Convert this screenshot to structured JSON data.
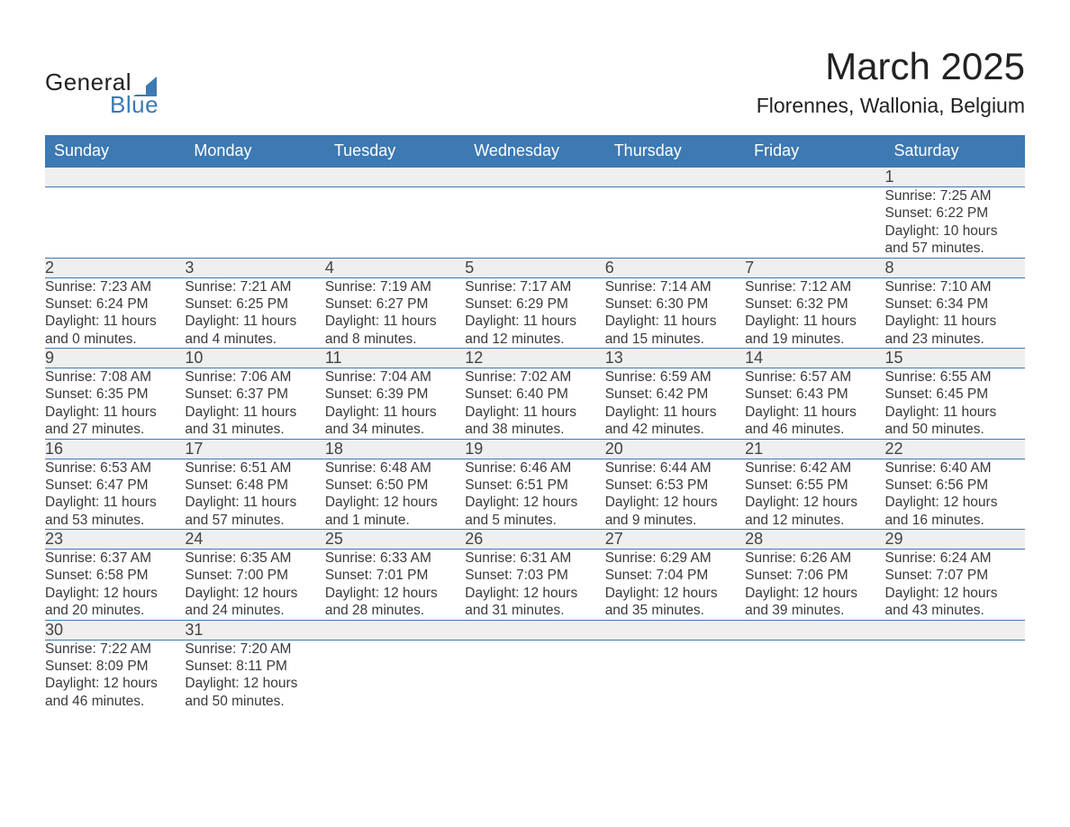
{
  "logo": {
    "text_general": "General",
    "text_blue": "Blue",
    "triangle_color": "#3d79b3"
  },
  "title": "March 2025",
  "location": "Florennes, Wallonia, Belgium",
  "colors": {
    "header_bg": "#3d79b3",
    "header_text": "#ffffff",
    "daynum_bg": "#efefef",
    "border": "#3d79b3",
    "body_text": "#3a3a3a",
    "page_bg": "#ffffff"
  },
  "typography": {
    "title_fontsize": 42,
    "location_fontsize": 23,
    "dayheader_fontsize": 18,
    "daynum_fontsize": 18,
    "detail_fontsize": 15.5
  },
  "day_headers": [
    "Sunday",
    "Monday",
    "Tuesday",
    "Wednesday",
    "Thursday",
    "Friday",
    "Saturday"
  ],
  "weeks": [
    [
      null,
      null,
      null,
      null,
      null,
      null,
      {
        "n": "1",
        "sr": "Sunrise: 7:25 AM",
        "ss": "Sunset: 6:22 PM",
        "d1": "Daylight: 10 hours",
        "d2": "and 57 minutes."
      }
    ],
    [
      {
        "n": "2",
        "sr": "Sunrise: 7:23 AM",
        "ss": "Sunset: 6:24 PM",
        "d1": "Daylight: 11 hours",
        "d2": "and 0 minutes."
      },
      {
        "n": "3",
        "sr": "Sunrise: 7:21 AM",
        "ss": "Sunset: 6:25 PM",
        "d1": "Daylight: 11 hours",
        "d2": "and 4 minutes."
      },
      {
        "n": "4",
        "sr": "Sunrise: 7:19 AM",
        "ss": "Sunset: 6:27 PM",
        "d1": "Daylight: 11 hours",
        "d2": "and 8 minutes."
      },
      {
        "n": "5",
        "sr": "Sunrise: 7:17 AM",
        "ss": "Sunset: 6:29 PM",
        "d1": "Daylight: 11 hours",
        "d2": "and 12 minutes."
      },
      {
        "n": "6",
        "sr": "Sunrise: 7:14 AM",
        "ss": "Sunset: 6:30 PM",
        "d1": "Daylight: 11 hours",
        "d2": "and 15 minutes."
      },
      {
        "n": "7",
        "sr": "Sunrise: 7:12 AM",
        "ss": "Sunset: 6:32 PM",
        "d1": "Daylight: 11 hours",
        "d2": "and 19 minutes."
      },
      {
        "n": "8",
        "sr": "Sunrise: 7:10 AM",
        "ss": "Sunset: 6:34 PM",
        "d1": "Daylight: 11 hours",
        "d2": "and 23 minutes."
      }
    ],
    [
      {
        "n": "9",
        "sr": "Sunrise: 7:08 AM",
        "ss": "Sunset: 6:35 PM",
        "d1": "Daylight: 11 hours",
        "d2": "and 27 minutes."
      },
      {
        "n": "10",
        "sr": "Sunrise: 7:06 AM",
        "ss": "Sunset: 6:37 PM",
        "d1": "Daylight: 11 hours",
        "d2": "and 31 minutes."
      },
      {
        "n": "11",
        "sr": "Sunrise: 7:04 AM",
        "ss": "Sunset: 6:39 PM",
        "d1": "Daylight: 11 hours",
        "d2": "and 34 minutes."
      },
      {
        "n": "12",
        "sr": "Sunrise: 7:02 AM",
        "ss": "Sunset: 6:40 PM",
        "d1": "Daylight: 11 hours",
        "d2": "and 38 minutes."
      },
      {
        "n": "13",
        "sr": "Sunrise: 6:59 AM",
        "ss": "Sunset: 6:42 PM",
        "d1": "Daylight: 11 hours",
        "d2": "and 42 minutes."
      },
      {
        "n": "14",
        "sr": "Sunrise: 6:57 AM",
        "ss": "Sunset: 6:43 PM",
        "d1": "Daylight: 11 hours",
        "d2": "and 46 minutes."
      },
      {
        "n": "15",
        "sr": "Sunrise: 6:55 AM",
        "ss": "Sunset: 6:45 PM",
        "d1": "Daylight: 11 hours",
        "d2": "and 50 minutes."
      }
    ],
    [
      {
        "n": "16",
        "sr": "Sunrise: 6:53 AM",
        "ss": "Sunset: 6:47 PM",
        "d1": "Daylight: 11 hours",
        "d2": "and 53 minutes."
      },
      {
        "n": "17",
        "sr": "Sunrise: 6:51 AM",
        "ss": "Sunset: 6:48 PM",
        "d1": "Daylight: 11 hours",
        "d2": "and 57 minutes."
      },
      {
        "n": "18",
        "sr": "Sunrise: 6:48 AM",
        "ss": "Sunset: 6:50 PM",
        "d1": "Daylight: 12 hours",
        "d2": "and 1 minute."
      },
      {
        "n": "19",
        "sr": "Sunrise: 6:46 AM",
        "ss": "Sunset: 6:51 PM",
        "d1": "Daylight: 12 hours",
        "d2": "and 5 minutes."
      },
      {
        "n": "20",
        "sr": "Sunrise: 6:44 AM",
        "ss": "Sunset: 6:53 PM",
        "d1": "Daylight: 12 hours",
        "d2": "and 9 minutes."
      },
      {
        "n": "21",
        "sr": "Sunrise: 6:42 AM",
        "ss": "Sunset: 6:55 PM",
        "d1": "Daylight: 12 hours",
        "d2": "and 12 minutes."
      },
      {
        "n": "22",
        "sr": "Sunrise: 6:40 AM",
        "ss": "Sunset: 6:56 PM",
        "d1": "Daylight: 12 hours",
        "d2": "and 16 minutes."
      }
    ],
    [
      {
        "n": "23",
        "sr": "Sunrise: 6:37 AM",
        "ss": "Sunset: 6:58 PM",
        "d1": "Daylight: 12 hours",
        "d2": "and 20 minutes."
      },
      {
        "n": "24",
        "sr": "Sunrise: 6:35 AM",
        "ss": "Sunset: 7:00 PM",
        "d1": "Daylight: 12 hours",
        "d2": "and 24 minutes."
      },
      {
        "n": "25",
        "sr": "Sunrise: 6:33 AM",
        "ss": "Sunset: 7:01 PM",
        "d1": "Daylight: 12 hours",
        "d2": "and 28 minutes."
      },
      {
        "n": "26",
        "sr": "Sunrise: 6:31 AM",
        "ss": "Sunset: 7:03 PM",
        "d1": "Daylight: 12 hours",
        "d2": "and 31 minutes."
      },
      {
        "n": "27",
        "sr": "Sunrise: 6:29 AM",
        "ss": "Sunset: 7:04 PM",
        "d1": "Daylight: 12 hours",
        "d2": "and 35 minutes."
      },
      {
        "n": "28",
        "sr": "Sunrise: 6:26 AM",
        "ss": "Sunset: 7:06 PM",
        "d1": "Daylight: 12 hours",
        "d2": "and 39 minutes."
      },
      {
        "n": "29",
        "sr": "Sunrise: 6:24 AM",
        "ss": "Sunset: 7:07 PM",
        "d1": "Daylight: 12 hours",
        "d2": "and 43 minutes."
      }
    ],
    [
      {
        "n": "30",
        "sr": "Sunrise: 7:22 AM",
        "ss": "Sunset: 8:09 PM",
        "d1": "Daylight: 12 hours",
        "d2": "and 46 minutes."
      },
      {
        "n": "31",
        "sr": "Sunrise: 7:20 AM",
        "ss": "Sunset: 8:11 PM",
        "d1": "Daylight: 12 hours",
        "d2": "and 50 minutes."
      },
      null,
      null,
      null,
      null,
      null
    ]
  ]
}
